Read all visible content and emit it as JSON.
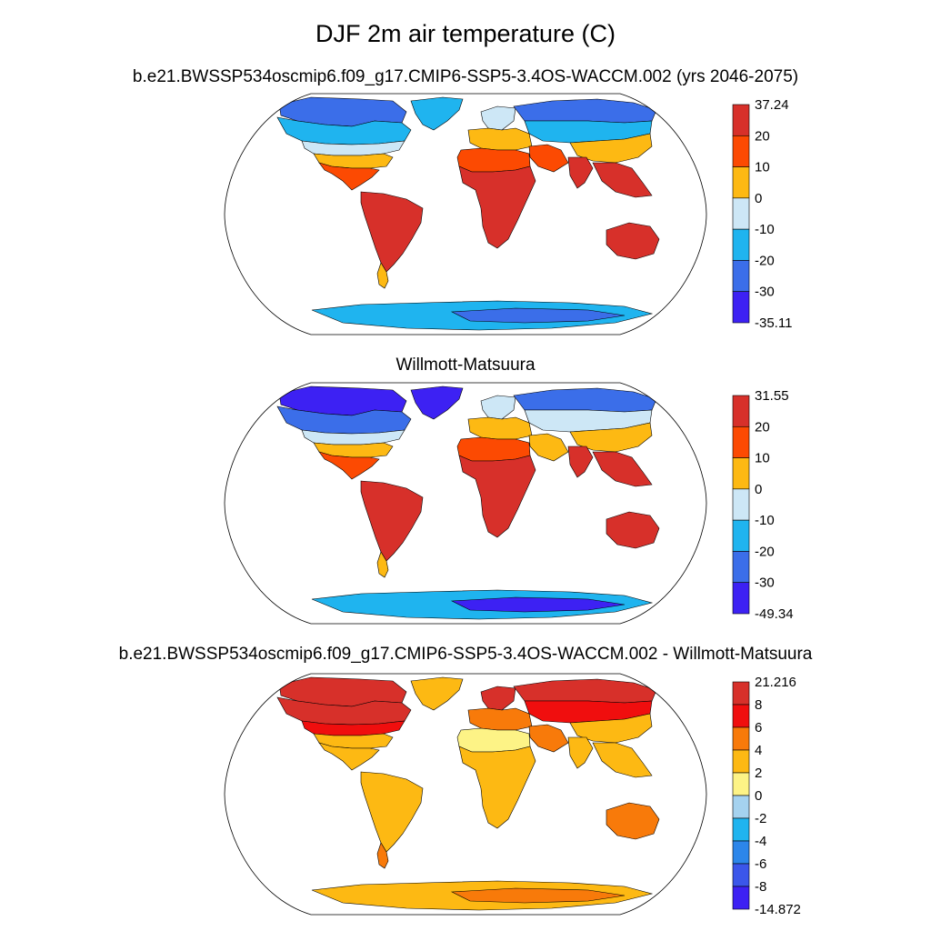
{
  "figure": {
    "title": "DJF 2m air temperature (C)"
  },
  "panels": [
    {
      "id": "model",
      "title": "b.e21.BWSSP534oscmip6.f09_g17.CMIP6-SSP5-3.4OS-WACCM.002 (yrs 2046-2075)",
      "colorbar": {
        "labels": [
          "37.24",
          "20",
          "10",
          "0",
          "-10",
          "-20",
          "-30",
          "-35.11"
        ],
        "colors": [
          "#d7302a",
          "#fc4a02",
          "#fdb913",
          "#cde7f6",
          "#1fb4ef",
          "#3b6ee9",
          "#3d21f3"
        ]
      }
    },
    {
      "id": "obs",
      "title": "Willmott-Matsuura",
      "colorbar": {
        "labels": [
          "31.55",
          "20",
          "10",
          "0",
          "-10",
          "-20",
          "-30",
          "-49.34"
        ],
        "colors": [
          "#d7302a",
          "#fc4a02",
          "#fdb913",
          "#cde7f6",
          "#1fb4ef",
          "#3b6ee9",
          "#3d21f3"
        ]
      }
    },
    {
      "id": "diff",
      "title": "b.e21.BWSSP534oscmip6.f09_g17.CMIP6-SSP5-3.4OS-WACCM.002 - Willmott-Matsuura",
      "colorbar": {
        "labels": [
          "21.216",
          "8",
          "6",
          "4",
          "2",
          "0",
          "-2",
          "-4",
          "-6",
          "-8",
          "-14.872"
        ],
        "colors": [
          "#d7302a",
          "#f00e0e",
          "#f87a0a",
          "#fdb913",
          "#fdf386",
          "#a5d2ef",
          "#1fb4ef",
          "#2c86ea",
          "#3b56ea",
          "#3d21f3"
        ]
      }
    }
  ],
  "regions": {
    "model": {
      "arctic_na": "#3b6ee9",
      "canada": "#1fb4ef",
      "greenland": "#1fb4ef",
      "usa_north": "#cde7f6",
      "usa_south": "#fdb913",
      "mexico": "#fc4a02",
      "south_america": "#d7302a",
      "patagonia": "#fdb913",
      "europe": "#fdb913",
      "scandinavia": "#cde7f6",
      "siberia": "#3b6ee9",
      "central_asia": "#1fb4ef",
      "china": "#fdb913",
      "north_africa": "#fc4a02",
      "africa": "#d7302a",
      "middle_east": "#fc4a02",
      "india": "#d7302a",
      "se_asia": "#d7302a",
      "australia": "#d7302a",
      "antarctica": "#1fb4ef",
      "antarctica_inner": "#3b6ee9"
    },
    "obs": {
      "arctic_na": "#3d21f3",
      "canada": "#3b6ee9",
      "greenland": "#3d21f3",
      "usa_north": "#cde7f6",
      "usa_south": "#fdb913",
      "mexico": "#fc4a02",
      "south_america": "#d7302a",
      "patagonia": "#fdb913",
      "europe": "#fdb913",
      "scandinavia": "#cde7f6",
      "siberia": "#3b6ee9",
      "central_asia": "#cde7f6",
      "china": "#fdb913",
      "north_africa": "#fc4a02",
      "africa": "#d7302a",
      "middle_east": "#fdb913",
      "india": "#d7302a",
      "se_asia": "#d7302a",
      "australia": "#d7302a",
      "antarctica": "#1fb4ef",
      "antarctica_inner": "#3d21f3"
    },
    "diff": {
      "arctic_na": "#d7302a",
      "canada": "#d7302a",
      "greenland": "#fdb913",
      "usa_north": "#f00e0e",
      "usa_south": "#fdb913",
      "mexico": "#fdb913",
      "south_america": "#fdb913",
      "patagonia": "#f87a0a",
      "europe": "#f87a0a",
      "scandinavia": "#d7302a",
      "siberia": "#d7302a",
      "central_asia": "#f00e0e",
      "china": "#fdb913",
      "north_africa": "#fdf386",
      "africa": "#fdb913",
      "middle_east": "#f87a0a",
      "india": "#fdb913",
      "se_asia": "#fdb913",
      "australia": "#f87a0a",
      "antarctica": "#fdb913",
      "antarctica_inner": "#f87a0a"
    }
  }
}
